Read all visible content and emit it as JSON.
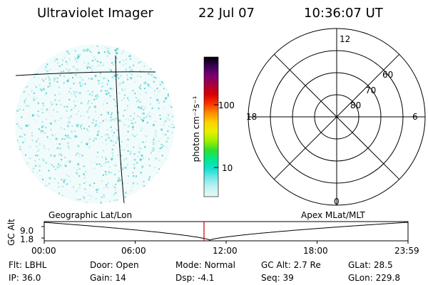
{
  "header": {
    "title": "Ultraviolet Imager",
    "date": "22 Jul 07",
    "time": "10:36:07 UT"
  },
  "colorbar": {
    "label": "photon cm⁻²s⁻¹",
    "ticks": [
      "100",
      "10"
    ],
    "colors": [
      "#000000",
      "#3a0058",
      "#7a0070",
      "#a8003c",
      "#d40000",
      "#ff3000",
      "#ff8c00",
      "#ffd000",
      "#e8f000",
      "#a0f000",
      "#2ee02e",
      "#00e890",
      "#14e0d0",
      "#7ae8e8",
      "#c2f2f2",
      "#e6f8f8"
    ]
  },
  "polar": {
    "labels": {
      "top": "12",
      "bottom": "0",
      "left": "18",
      "right": "6"
    },
    "rings": [
      "60",
      "70",
      "80"
    ]
  },
  "track": {
    "axis_label": "GC Alt",
    "y_ticks": [
      "9.0",
      "1.8"
    ],
    "left_title": "Geographic Lat/Lon",
    "right_title": "Apex MLat/MLT",
    "x_ticks": [
      "00:00",
      "06:00",
      "12:00",
      "18:00",
      "23:59"
    ],
    "marker_color": "#cc0000"
  },
  "readouts": {
    "row1": [
      {
        "label": "Flt:",
        "value": "LBHL"
      },
      {
        "label": "Door:",
        "value": "Open"
      },
      {
        "label": "Mode:",
        "value": "Normal"
      },
      {
        "label": "GC Alt:",
        "value": "2.7 Re"
      },
      {
        "label": "GLat:",
        "value": "28.5"
      }
    ],
    "row2": [
      {
        "label": "IP:",
        "value": "36.0"
      },
      {
        "label": "Gain:",
        "value": "14"
      },
      {
        "label": "Dsp:",
        "value": "-4.1"
      },
      {
        "label": "Seq:",
        "value": "39"
      },
      {
        "label": "GLon:",
        "value": "229.8"
      }
    ]
  }
}
